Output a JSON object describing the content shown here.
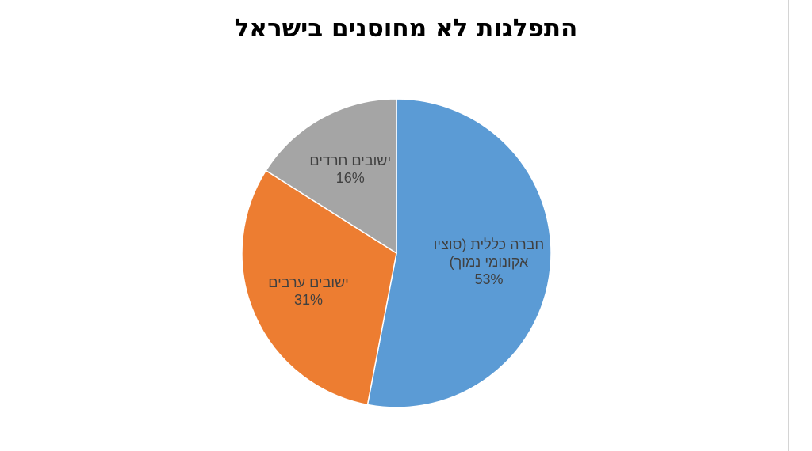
{
  "chart_data": {
    "type": "pie",
    "title": "התפלגות לא מחוסנים בישראל",
    "slices": [
      {
        "label_lines": [
          "חברה כללית (סוציו",
          "אקונומי נמוך)"
        ],
        "value": 53,
        "value_label": "53%",
        "color": "#5B9BD5"
      },
      {
        "label_lines": [
          "ישובים ערבים"
        ],
        "value": 31,
        "value_label": "31%",
        "color": "#ED7D31"
      },
      {
        "label_lines": [
          "ישובים חרדים"
        ],
        "value": 16,
        "value_label": "16%",
        "color": "#A5A5A5"
      }
    ],
    "start_angle": "12 o'clock",
    "direction": "clockwise",
    "legend": "none",
    "data_labels": "inside"
  }
}
